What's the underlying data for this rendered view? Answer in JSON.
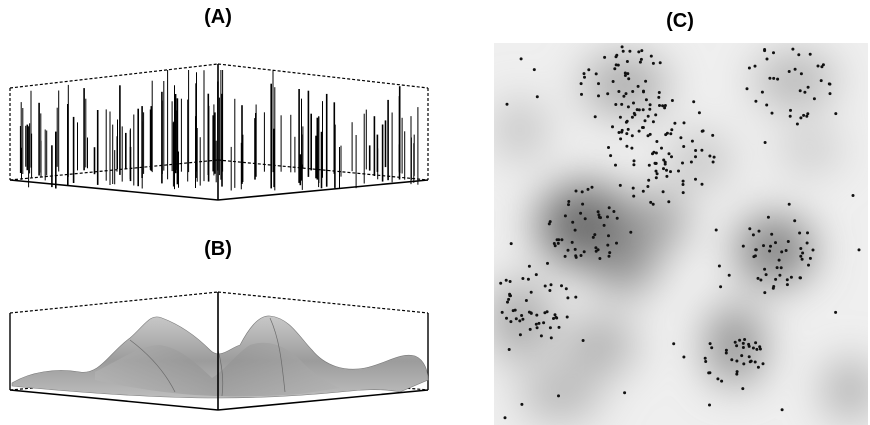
{
  "panels": {
    "a": {
      "label": "(A)"
    },
    "b": {
      "label": "(B)"
    },
    "c": {
      "label": "(C)"
    }
  },
  "colors": {
    "background": "#ffffff",
    "line": "#000000",
    "surface": "#a9a9a9",
    "map_light": "#f2f2f2",
    "map_dark": "#6e6e6e",
    "point": "#111111"
  }
}
